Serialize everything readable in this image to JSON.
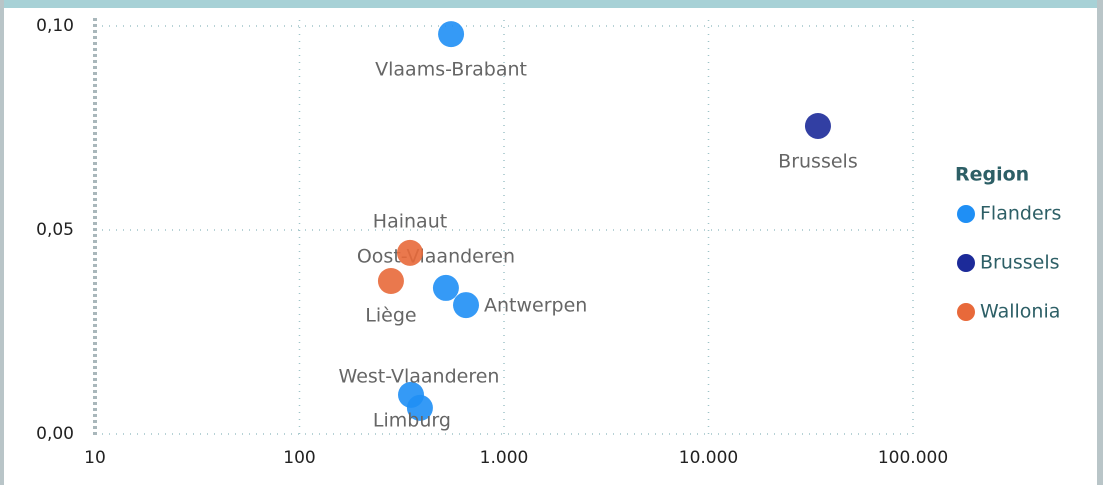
{
  "chart_data": {
    "type": "scatter",
    "legend_title": "Region",
    "legend": "right",
    "x_log": true,
    "grid": true,
    "xlim": [
      10,
      100000
    ],
    "xticks": [
      10,
      100,
      {
        "value": 1000,
        "label": "1.000"
      },
      {
        "value": 10000,
        "label": "10.000"
      },
      {
        "value": 100000,
        "label": "100.000"
      }
    ],
    "ylim": [
      0,
      0.1
    ],
    "yticks": [
      {
        "value": 0,
        "label": "0,00"
      },
      {
        "value": 0.05,
        "label": "0,05"
      },
      {
        "value": 0.1,
        "label": "0,10"
      }
    ],
    "series": [
      {
        "name": "Flanders",
        "color": "#1f8ff5",
        "labels": [
          "Vlaams-Brabant",
          "Oost-Vlaanderen",
          "Antwerpen",
          "West-Vlaanderen",
          "Limburg"
        ],
        "x": [
          551,
          520,
          652,
          351,
          388
        ],
        "values": [
          0.098,
          0.0358,
          0.0316,
          0.0096,
          0.0064
        ]
      },
      {
        "name": "Brussels",
        "color": "#1c2a99",
        "labels": [
          "Brussels"
        ],
        "x": [
          34300
        ],
        "values": [
          0.0755
        ]
      },
      {
        "name": "Wallonia",
        "color": "#e8693a",
        "labels": [
          "Hainaut",
          "Liège"
        ],
        "x": [
          347,
          280
        ],
        "values": [
          0.0444,
          0.0375
        ]
      }
    ]
  }
}
